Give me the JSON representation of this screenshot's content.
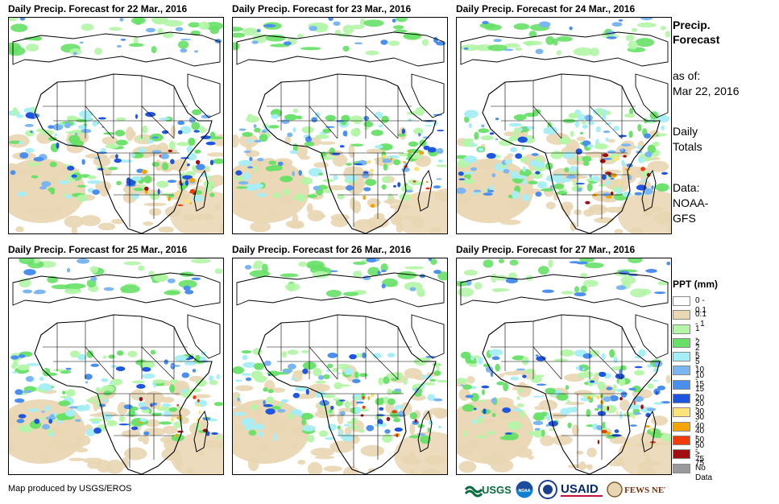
{
  "panels": [
    {
      "title": "Daily Precip. Forecast for 22 Mar., 2016"
    },
    {
      "title": "Daily Precip. Forecast for 23 Mar., 2016"
    },
    {
      "title": "Daily Precip. Forecast for 24 Mar., 2016"
    },
    {
      "title": "Daily Precip. Forecast for 25 Mar., 2016"
    },
    {
      "title": "Daily Precip. Forecast for 26 Mar., 2016"
    },
    {
      "title": "Daily Precip. Forecast for 27 Mar., 2016"
    }
  ],
  "side": {
    "title_line1": "Precip.",
    "title_line2": "Forecast",
    "asof_label": "as of:",
    "asof_date": "Mar 22, 2016",
    "totals_line1": "Daily",
    "totals_line2": "Totals",
    "data_line1": "Data:",
    "data_line2": "NOAA-",
    "data_line3": "GFS"
  },
  "legend": {
    "title": "PPT (mm)",
    "items": [
      {
        "label": "0 - 0.1",
        "color": "#ffffff"
      },
      {
        "label": "0.1 - 1",
        "color": "#e9d6b2"
      },
      {
        "label": "1 - 2",
        "color": "#b4f5a8"
      },
      {
        "label": "2 - 5",
        "color": "#66e066"
      },
      {
        "label": "5 - 10",
        "color": "#a6eef5"
      },
      {
        "label": "10 - 15",
        "color": "#7bb6f2"
      },
      {
        "label": "15 - 20",
        "color": "#4b8fee"
      },
      {
        "label": "20 - 30",
        "color": "#1f56e0"
      },
      {
        "label": "30 - 40",
        "color": "#ffe27a"
      },
      {
        "label": "40 - 50",
        "color": "#f5a400"
      },
      {
        "label": "50 - 75",
        "color": "#f03c0a"
      },
      {
        "label": "> 75",
        "color": "#a01010"
      },
      {
        "label": "No Data",
        "color": "#999999"
      }
    ]
  },
  "credit": "Map produced by USGS/EROS",
  "logos": {
    "usgs": "USGS",
    "usaid": "USAID",
    "fewsnet": "FEWS NET",
    "noaa": "NOAA"
  }
}
